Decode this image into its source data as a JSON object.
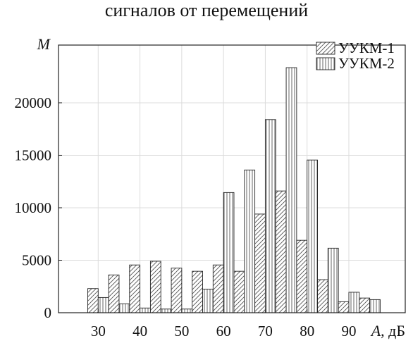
{
  "chart_data": {
    "type": "bar",
    "title": "сигналов от перемещений",
    "xlabel_var": "A",
    "xlabel_unit": ", дБ",
    "ylabel": "M",
    "xlim": [
      20.5,
      103.5
    ],
    "ylim": [
      0,
      25500
    ],
    "xticks": [
      30,
      40,
      50,
      60,
      70,
      80,
      90
    ],
    "yticks": [
      0,
      5000,
      10000,
      15000,
      20000
    ],
    "grid": true,
    "legend": "top-right",
    "bin_width": 5,
    "bin_centers": [
      30,
      35,
      40,
      45,
      50,
      55,
      60,
      65,
      70,
      75,
      80,
      85,
      90,
      95,
      100
    ],
    "series": [
      {
        "name": "УУКМ-1",
        "pattern": "diagonal-hatch",
        "values": [
          2300,
          3600,
          4550,
          4900,
          4250,
          3950,
          4550,
          3950,
          9400,
          11600,
          6900,
          3150,
          1050,
          1400,
          0
        ]
      },
      {
        "name": "УУКМ-2",
        "pattern": "vertical-hatch",
        "values": [
          1450,
          850,
          450,
          350,
          350,
          2250,
          11450,
          13600,
          18400,
          23350,
          14550,
          6150,
          1950,
          1250,
          0
        ]
      }
    ]
  }
}
